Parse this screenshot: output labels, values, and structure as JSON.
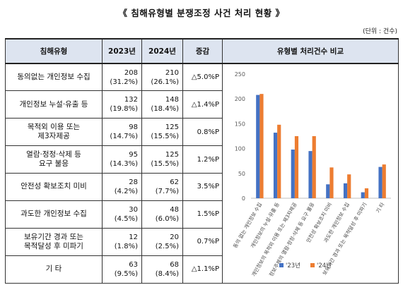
{
  "title": "《 침해유형별 분쟁조정 사건 처리 현황 》",
  "unit": "(단위 : 건수)",
  "headers": {
    "type": "침해유형",
    "y2023": "2023년",
    "y2024": "2024년",
    "change": "증감",
    "chart": "유형별 처리건수 비교"
  },
  "rows": [
    {
      "type_lines": [
        "동의없는 개인정보 수집"
      ],
      "v2023": "208",
      "p2023": "(31.2%)",
      "v2024": "210",
      "p2024": "(26.1%)",
      "change": "△5.0%P"
    },
    {
      "type_lines": [
        "개인정보 누설·유출 등"
      ],
      "v2023": "132",
      "p2023": "(19.8%)",
      "v2024": "148",
      "p2024": "(18.4%)",
      "change": "△1.4%P"
    },
    {
      "type_lines": [
        "목적외 이용 또는",
        "제3자제공"
      ],
      "v2023": "98",
      "p2023": "(14.7%)",
      "v2024": "125",
      "p2024": "(15.5%)",
      "change": "0.8%P"
    },
    {
      "type_lines": [
        "열람·정정·삭제 등",
        "요구 불응"
      ],
      "v2023": "95",
      "p2023": "(14.3%)",
      "v2024": "125",
      "p2024": "(15.5%)",
      "change": "1.2%P"
    },
    {
      "type_lines": [
        "안전성 확보조치 미비"
      ],
      "v2023": "28",
      "p2023": "(4.2%)",
      "v2024": "62",
      "p2024": "(7.7%)",
      "change": "3.5%P"
    },
    {
      "type_lines": [
        "과도한 개인정보 수집"
      ],
      "v2023": "30",
      "p2023": "(4.5%)",
      "v2024": "48",
      "p2024": "(6.0%)",
      "change": "1.5%P"
    },
    {
      "type_lines": [
        "보유기간 경과 또는",
        "목적달성 후 미파기"
      ],
      "v2023": "12",
      "p2023": "(1.8%)",
      "v2024": "20",
      "p2024": "(2.5%)",
      "change": "0.7%P"
    },
    {
      "type_lines": [
        "기 타"
      ],
      "v2023": "63",
      "p2023": "(9.5%)",
      "v2024": "68",
      "p2024": "(8.4%)",
      "change": "△1.1%P"
    }
  ],
  "colors": {
    "series_2023": "#4472c4",
    "series_2024": "#ed7d31",
    "header_bg": "#dde4f0"
  },
  "chart_data": {
    "type": "bar",
    "categories": [
      "동의 없는 개인정보 수집",
      "개인정보의 누설·유출 등",
      "개인정보의 목적외 이용 또는 제3자제공",
      "정보주체의 열람·정정·삭제 등 요구 불응",
      "안전성 확보조치 미비",
      "과도한 개인정보 수집",
      "보유기간 경과 또는 목적달성 후 미파기",
      "기 타"
    ],
    "series": [
      {
        "name": "'23년",
        "values": [
          208,
          132,
          98,
          95,
          28,
          30,
          12,
          63
        ]
      },
      {
        "name": "'24년",
        "values": [
          210,
          148,
          125,
          125,
          62,
          48,
          20,
          68
        ]
      }
    ],
    "y_ticks": [
      0,
      50,
      100,
      150,
      200,
      250
    ],
    "ylim": [
      0,
      250
    ],
    "grid": false,
    "legend": "bottom"
  }
}
